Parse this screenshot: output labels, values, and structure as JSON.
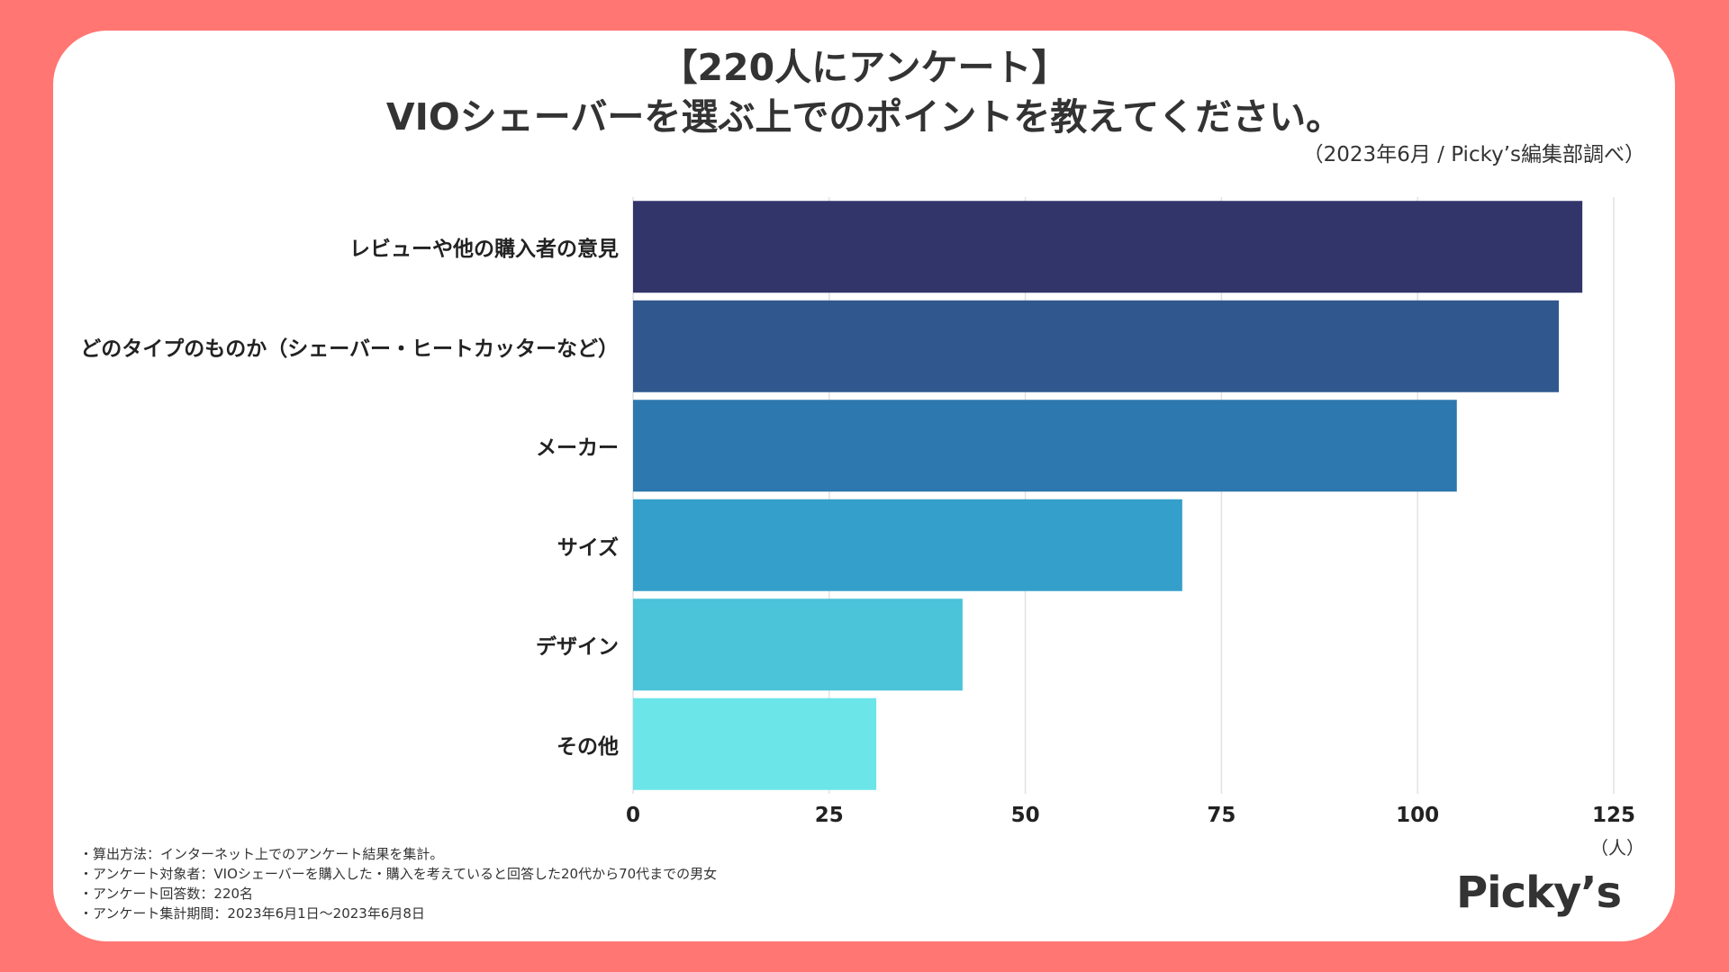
{
  "chart_data": {
    "type": "bar",
    "orientation": "horizontal",
    "title": "【220人にアンケート】",
    "subtitle": "VIOシェーバーを選ぶ上でのポイントを教えてください。",
    "source": "（2023年6月 / Picky’s編集部調べ）",
    "categories": [
      "レビューや他の購入者の意見",
      "どのタイプのものか（シェーバー・ヒートカッターなど）",
      "メーカー",
      "サイズ",
      "デザイン",
      "その他"
    ],
    "values": [
      121,
      118,
      105,
      70,
      42,
      31
    ],
    "colors": [
      "#31356A",
      "#31588E",
      "#2D78AE",
      "#349FCA",
      "#4BC3D9",
      "#6BE5E8"
    ],
    "xlim": [
      0,
      125
    ],
    "xticks": [
      "0",
      "25",
      "50",
      "75",
      "100",
      "125"
    ],
    "xticks_values": [
      0,
      25,
      50,
      75,
      100,
      125
    ],
    "xlabel": "（人）",
    "grid": true,
    "gridline_color": "#E2E2E2"
  },
  "notes": [
    "・算出方法：インターネット上でのアンケート結果を集計。",
    "・アンケート対象者：VIOシェーバーを購入した・購入を考えていると回答した20代から70代までの男女",
    "・アンケート回答数：220名",
    "・アンケート集計期間：2023年6月1日〜2023年6月8日"
  ],
  "logo": "Picky’s",
  "colors": {
    "background": "#FF7672",
    "card": "#FFFFFF",
    "text": "#333333"
  }
}
